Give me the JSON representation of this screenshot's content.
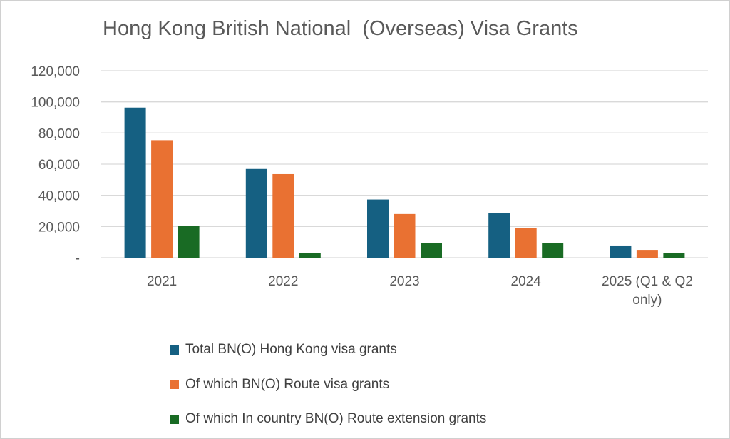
{
  "chart_data": {
    "type": "bar",
    "title": "Hong Kong British National  (Overseas) Visa Grants",
    "categories": [
      "2021",
      "2022",
      "2023",
      "2024",
      "2025 (Q1 & Q2 only)"
    ],
    "category_label_lines": [
      [
        "2021"
      ],
      [
        "2022"
      ],
      [
        "2023"
      ],
      [
        "2024"
      ],
      [
        "2025 (Q1 & Q2",
        "only)"
      ]
    ],
    "series": [
      {
        "name": "Total BN(O) Hong Kong visa grants",
        "color": "#156082",
        "values": [
          96300,
          56900,
          37300,
          28500,
          7800
        ]
      },
      {
        "name": "Of which BN(O) Route visa grants",
        "color": "#E97132",
        "values": [
          75400,
          53600,
          28000,
          18800,
          5000
        ]
      },
      {
        "name": "Of which In country BN(O) Route extension grants",
        "color": "#196B24",
        "values": [
          20500,
          3200,
          9200,
          9600,
          2900
        ]
      }
    ],
    "ylim": [
      0,
      120000
    ],
    "yticks": [
      0,
      20000,
      40000,
      60000,
      80000,
      100000,
      120000
    ],
    "ytick_labels": [
      "-",
      "20,000",
      "40,000",
      "60,000",
      "80,000",
      "100,000",
      "120,000"
    ],
    "xlabel": "",
    "ylabel": "",
    "grid": true,
    "legend_position": "bottom"
  }
}
